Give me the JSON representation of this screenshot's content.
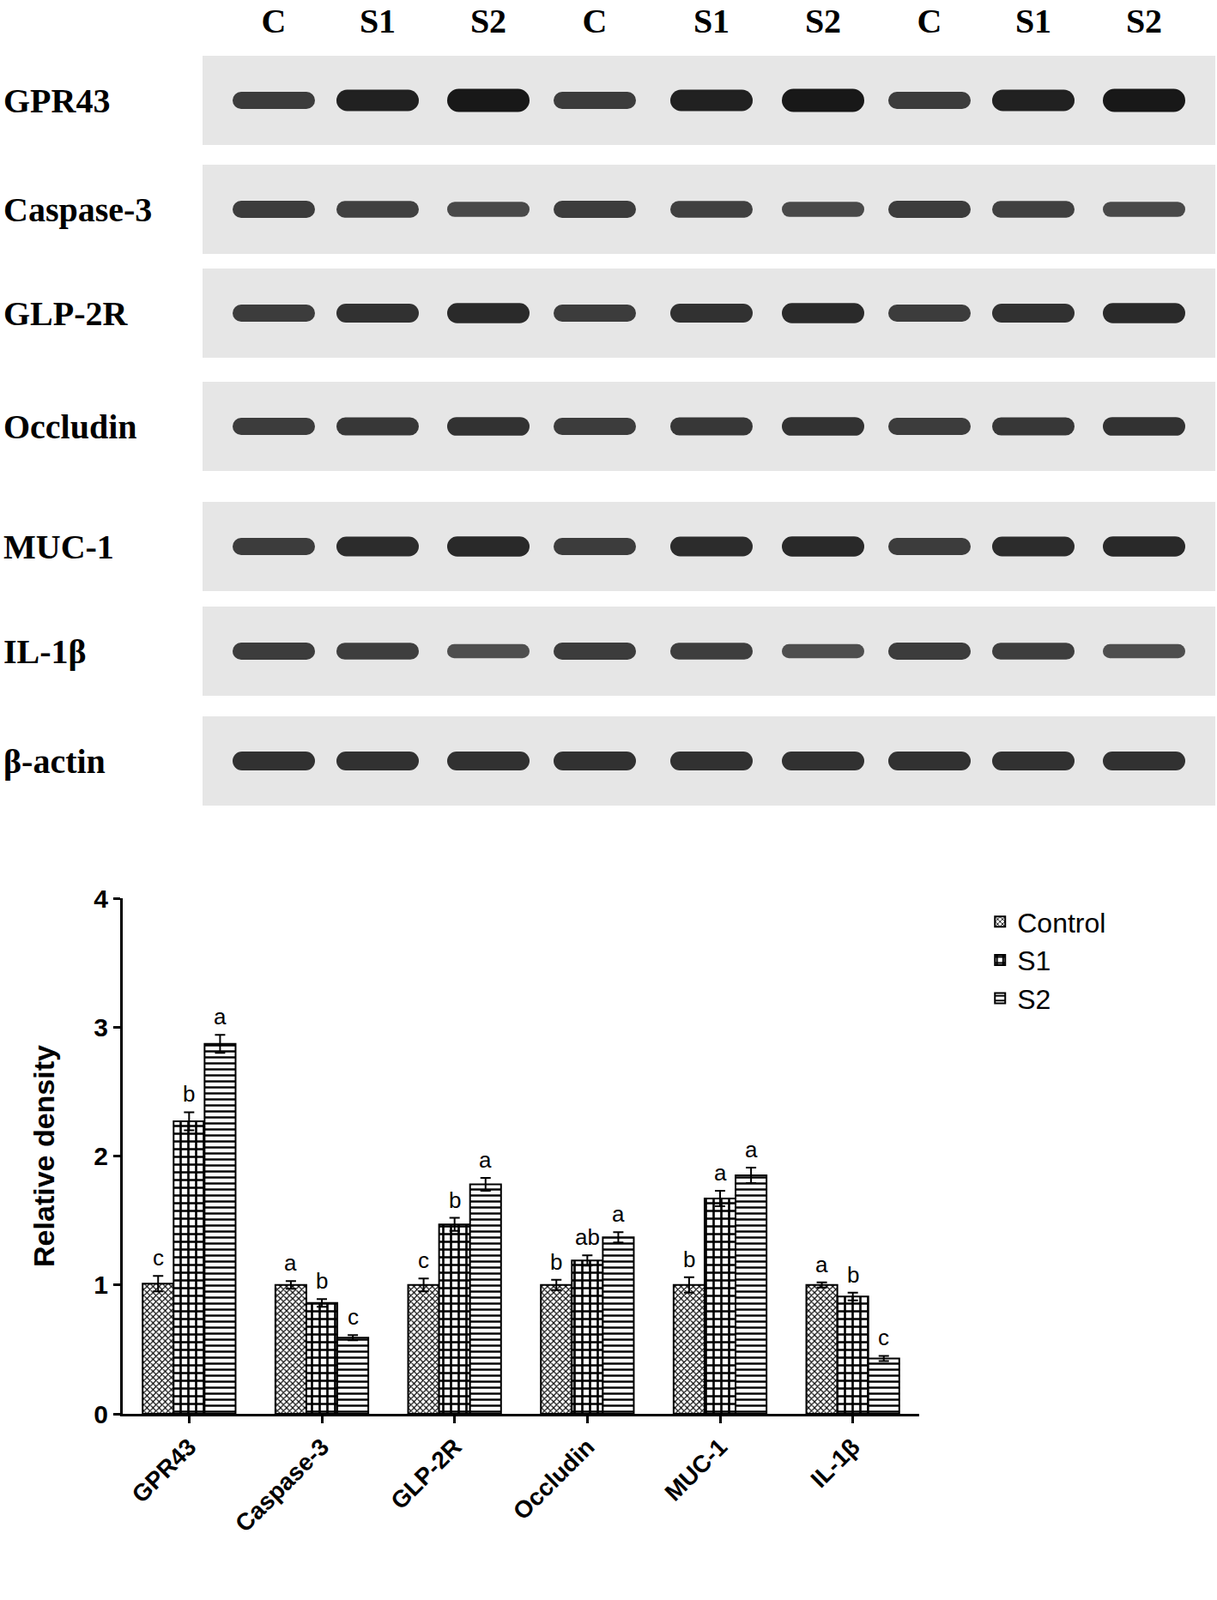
{
  "blot": {
    "lanes": [
      "C",
      "S1",
      "S2",
      "C",
      "S1",
      "S2",
      "C",
      "S1",
      "S2"
    ],
    "proteins": [
      "GPR43",
      "Caspase-3",
      "GLP-2R",
      "Occludin",
      "MUC-1",
      "IL-1β",
      "β-actin"
    ]
  },
  "chart_data": {
    "type": "bar",
    "y_label": "Relative density",
    "categories": [
      "GPR43",
      "Caspase-3",
      "GLP-2R",
      "Occludin",
      "MUC-1",
      "IL-1β"
    ],
    "series": [
      {
        "name": "Control",
        "color": "#000000",
        "marker": "fine_checker",
        "values": [
          1.01,
          1.0,
          1.0,
          1.0,
          1.0,
          1.0
        ],
        "error": [
          0.06,
          0.03,
          0.05,
          0.04,
          0.06,
          0.02
        ],
        "letters": [
          "c",
          "a",
          "c",
          "b",
          "b",
          "a"
        ]
      },
      {
        "name": "S1",
        "color": "#000000",
        "marker": "checkerboard",
        "values": [
          2.27,
          0.86,
          1.47,
          1.19,
          1.67,
          0.91
        ],
        "error": [
          0.07,
          0.03,
          0.05,
          0.04,
          0.06,
          0.03
        ],
        "letters": [
          "b",
          "b",
          "b",
          "ab",
          "a",
          "b"
        ]
      },
      {
        "name": "S2",
        "color": "#000000",
        "marker": "stripes",
        "values": [
          2.87,
          0.59,
          1.78,
          1.37,
          1.85,
          0.43
        ],
        "error": [
          0.07,
          0.02,
          0.05,
          0.04,
          0.06,
          0.02
        ],
        "letters": [
          "a",
          "c",
          "a",
          "a",
          "a",
          "c"
        ]
      }
    ],
    "ylim": [
      0,
      4
    ],
    "yticks": [
      0,
      1,
      2,
      3,
      4
    ],
    "grid": false,
    "legend": "top right"
  }
}
